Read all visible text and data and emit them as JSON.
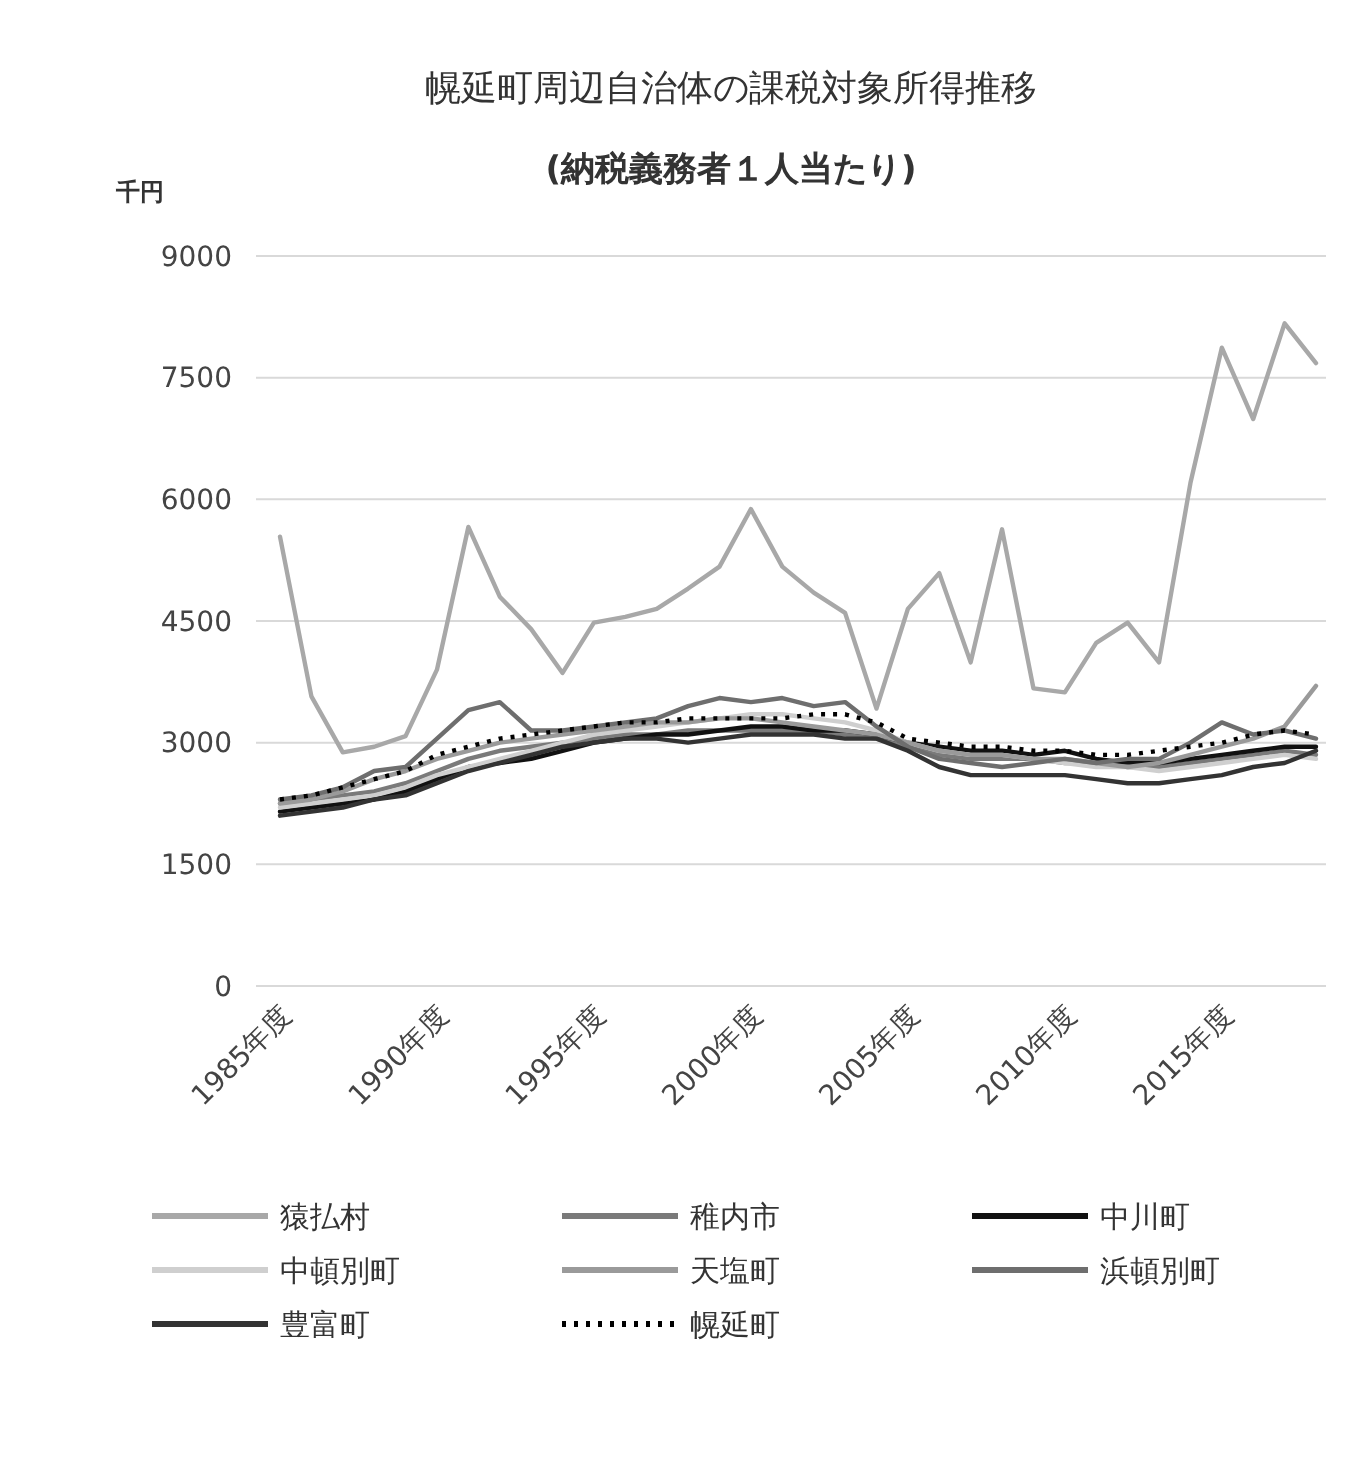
{
  "chart_data": {
    "type": "line",
    "title": "幌延町周辺自治体の課税対象所得推移",
    "subtitle": "(納税義務者１人当たり)",
    "ylabel": "千円",
    "categories": [
      "1985年度",
      null,
      null,
      null,
      null,
      "1990年度",
      null,
      null,
      null,
      null,
      "1995年度",
      null,
      null,
      null,
      null,
      "2000年度",
      null,
      null,
      null,
      null,
      "2005年度",
      null,
      null,
      null,
      null,
      "2010年度",
      null,
      null,
      null,
      null,
      "2015年度",
      null,
      null,
      null
    ],
    "ylim": [
      0,
      9000
    ],
    "yticks": [
      0,
      1500,
      3000,
      4500,
      6000,
      7500,
      9000
    ],
    "grid": "y",
    "legend": "bottom",
    "marker": "none",
    "series": [
      {
        "name": "猿払村",
        "color": "#a8a8a8",
        "values": [
          5540,
          3570,
          2880,
          2950,
          3080,
          3900,
          5660,
          4800,
          4400,
          3860,
          4480,
          4550,
          4650,
          4900,
          5170,
          5880,
          5170,
          4850,
          4600,
          3420,
          4650,
          5090,
          3990,
          5630,
          3670,
          3620,
          4230,
          4480,
          3990,
          6200,
          7870,
          6990,
          8170,
          7680
        ]
      },
      {
        "name": "稚内市",
        "color": "#7a7a7a",
        "values": [
          2250,
          2300,
          2350,
          2400,
          2500,
          2650,
          2800,
          2900,
          2950,
          3000,
          3050,
          3100,
          3100,
          3150,
          3150,
          3150,
          3150,
          3150,
          3100,
          3050,
          2950,
          2850,
          2800,
          2800,
          2800,
          2750,
          2750,
          2700,
          2700,
          2750,
          2800,
          2850,
          2900,
          2850
        ]
      },
      {
        "name": "中川町",
        "color": "#111111",
        "values": [
          2150,
          2200,
          2250,
          2300,
          2400,
          2550,
          2700,
          2750,
          2800,
          2900,
          3000,
          3050,
          3100,
          3100,
          3150,
          3200,
          3200,
          3150,
          3150,
          3100,
          3000,
          2950,
          2900,
          2900,
          2850,
          2900,
          2800,
          2750,
          2750,
          2800,
          2850,
          2900,
          2950,
          2950
        ]
      },
      {
        "name": "中頓別町",
        "color": "#cfcfcf",
        "values": [
          2200,
          2250,
          2300,
          2350,
          2450,
          2600,
          2700,
          2800,
          2900,
          3000,
          3100,
          3150,
          3200,
          3250,
          3300,
          3350,
          3350,
          3300,
          3250,
          3150,
          3000,
          2900,
          2850,
          2850,
          2800,
          2750,
          2700,
          2700,
          2650,
          2700,
          2750,
          2800,
          2850,
          2800
        ]
      },
      {
        "name": "天塩町",
        "color": "#9a9a9a",
        "values": [
          2250,
          2300,
          2400,
          2550,
          2650,
          2800,
          2900,
          3000,
          3050,
          3100,
          3150,
          3200,
          3250,
          3250,
          3300,
          3300,
          3250,
          3200,
          3150,
          3100,
          3000,
          2900,
          2850,
          2850,
          2800,
          2800,
          2750,
          2700,
          2750,
          2850,
          2950,
          3050,
          3200,
          3700
        ]
      },
      {
        "name": "浜頓別町",
        "color": "#6e6e6e",
        "values": [
          2300,
          2350,
          2450,
          2650,
          2700,
          3050,
          3400,
          3500,
          3150,
          3150,
          3200,
          3250,
          3300,
          3450,
          3550,
          3500,
          3550,
          3450,
          3500,
          3200,
          2950,
          2800,
          2750,
          2700,
          2750,
          2800,
          2750,
          2800,
          2800,
          3000,
          3250,
          3100,
          3150,
          3050
        ]
      },
      {
        "name": "豊富町",
        "color": "#333333",
        "values": [
          2100,
          2150,
          2200,
          2300,
          2350,
          2500,
          2650,
          2750,
          2850,
          2950,
          3000,
          3050,
          3050,
          3000,
          3050,
          3100,
          3100,
          3100,
          3050,
          3050,
          2900,
          2700,
          2600,
          2600,
          2600,
          2600,
          2550,
          2500,
          2500,
          2550,
          2600,
          2700,
          2750,
          2900
        ]
      },
      {
        "name": "幌延町",
        "color": "#000000",
        "line_style": "dotted",
        "values": [
          2300,
          2350,
          2450,
          2550,
          2650,
          2850,
          2950,
          3050,
          3100,
          3150,
          3200,
          3250,
          3250,
          3300,
          3300,
          3300,
          3300,
          3350,
          3350,
          3250,
          3050,
          3000,
          2950,
          2950,
          2900,
          2900,
          2850,
          2850,
          2900,
          2950,
          3000,
          3100,
          3150,
          3100
        ]
      }
    ]
  }
}
